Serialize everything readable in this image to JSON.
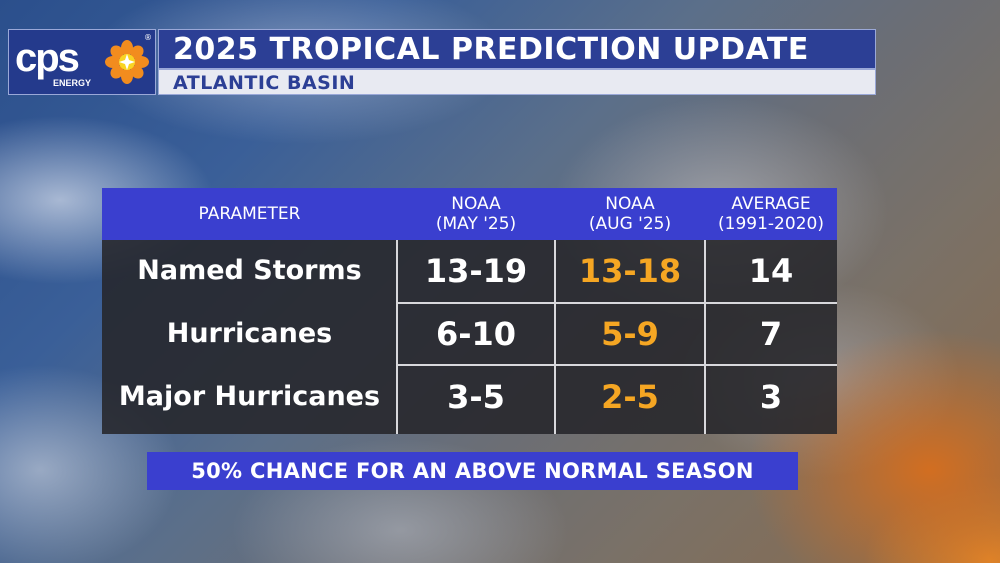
{
  "logo": {
    "text": "cps",
    "sub": "ENERGY",
    "reg": "®"
  },
  "header": {
    "title": "2025 TROPICAL PREDICTION UPDATE",
    "subtitle": "ATLANTIC BASIN"
  },
  "colors": {
    "header_bar": "#2c3f95",
    "table_header": "#3a3fcf",
    "highlight": "#f5a623"
  },
  "table": {
    "columns": [
      {
        "line1": "PARAMETER",
        "line2": ""
      },
      {
        "line1": "NOAA",
        "line2": "(MAY '25)"
      },
      {
        "line1": "NOAA",
        "line2": "(AUG '25)"
      },
      {
        "line1": "AVERAGE",
        "line2": "(1991-2020)"
      }
    ],
    "rows": [
      {
        "parameter": "Named Storms",
        "may": "13-19",
        "aug": "13-18",
        "average": "14"
      },
      {
        "parameter": "Hurricanes",
        "may": "6-10",
        "aug": "5-9",
        "average": "7"
      },
      {
        "parameter": "Major Hurricanes",
        "may": "3-5",
        "aug": "2-5",
        "average": "3"
      }
    ]
  },
  "banner": "50% CHANCE FOR AN ABOVE NORMAL SEASON"
}
